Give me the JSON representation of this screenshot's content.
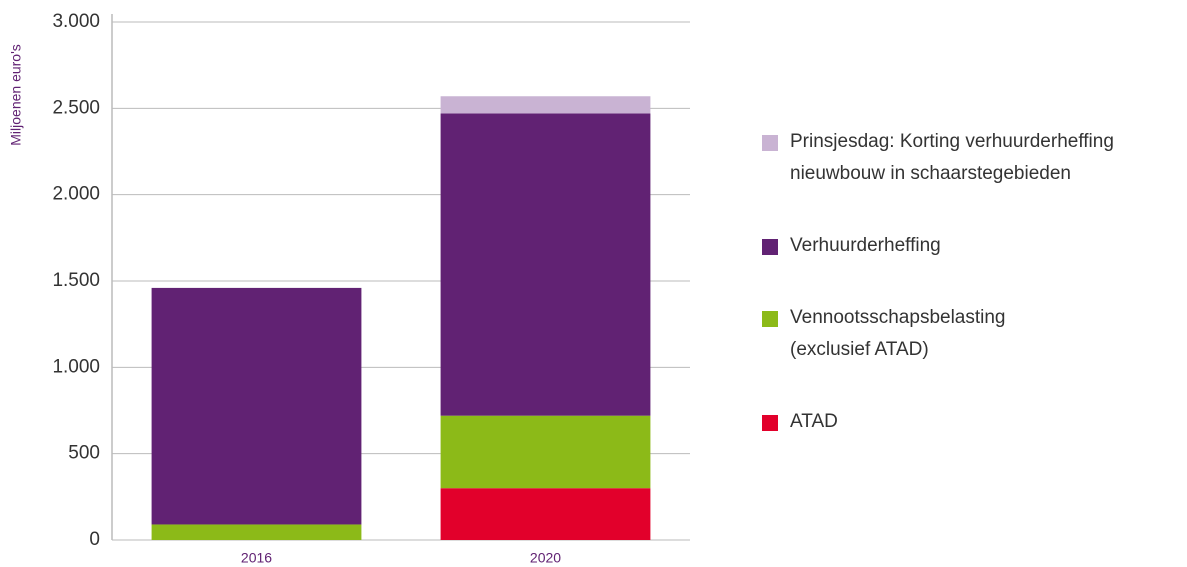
{
  "chart_data": {
    "type": "bar",
    "stacked": true,
    "y_label": "Miljoenen euro's",
    "categories": [
      "2016",
      "2020"
    ],
    "series": [
      {
        "name": "Prinsjesdag: Korting verhuurderheffing\nnieuwbouw in schaarstegebieden",
        "color": "#c9b3d3",
        "values": [
          0,
          100
        ]
      },
      {
        "name": "Verhuurderheffing",
        "color": "#612273",
        "values": [
          1370,
          1750
        ]
      },
      {
        "name": "Vennootsschapsbelasting\n(exclusief ATAD)",
        "color": "#8cba18",
        "values": [
          90,
          420
        ]
      },
      {
        "name": "ATAD",
        "color": "#e2002b",
        "values": [
          0,
          300
        ]
      }
    ],
    "ylim": [
      0,
      3000
    ],
    "yticks": [
      0,
      500,
      {
        "value": 1000,
        "label": "1.000"
      },
      {
        "value": 1500,
        "label": "1.500"
      },
      {
        "value": 2000,
        "label": "2.000"
      },
      {
        "value": 2500,
        "label": "2.500"
      },
      {
        "value": 3000,
        "label": "3.000"
      }
    ],
    "grid": true,
    "legend": "right"
  }
}
